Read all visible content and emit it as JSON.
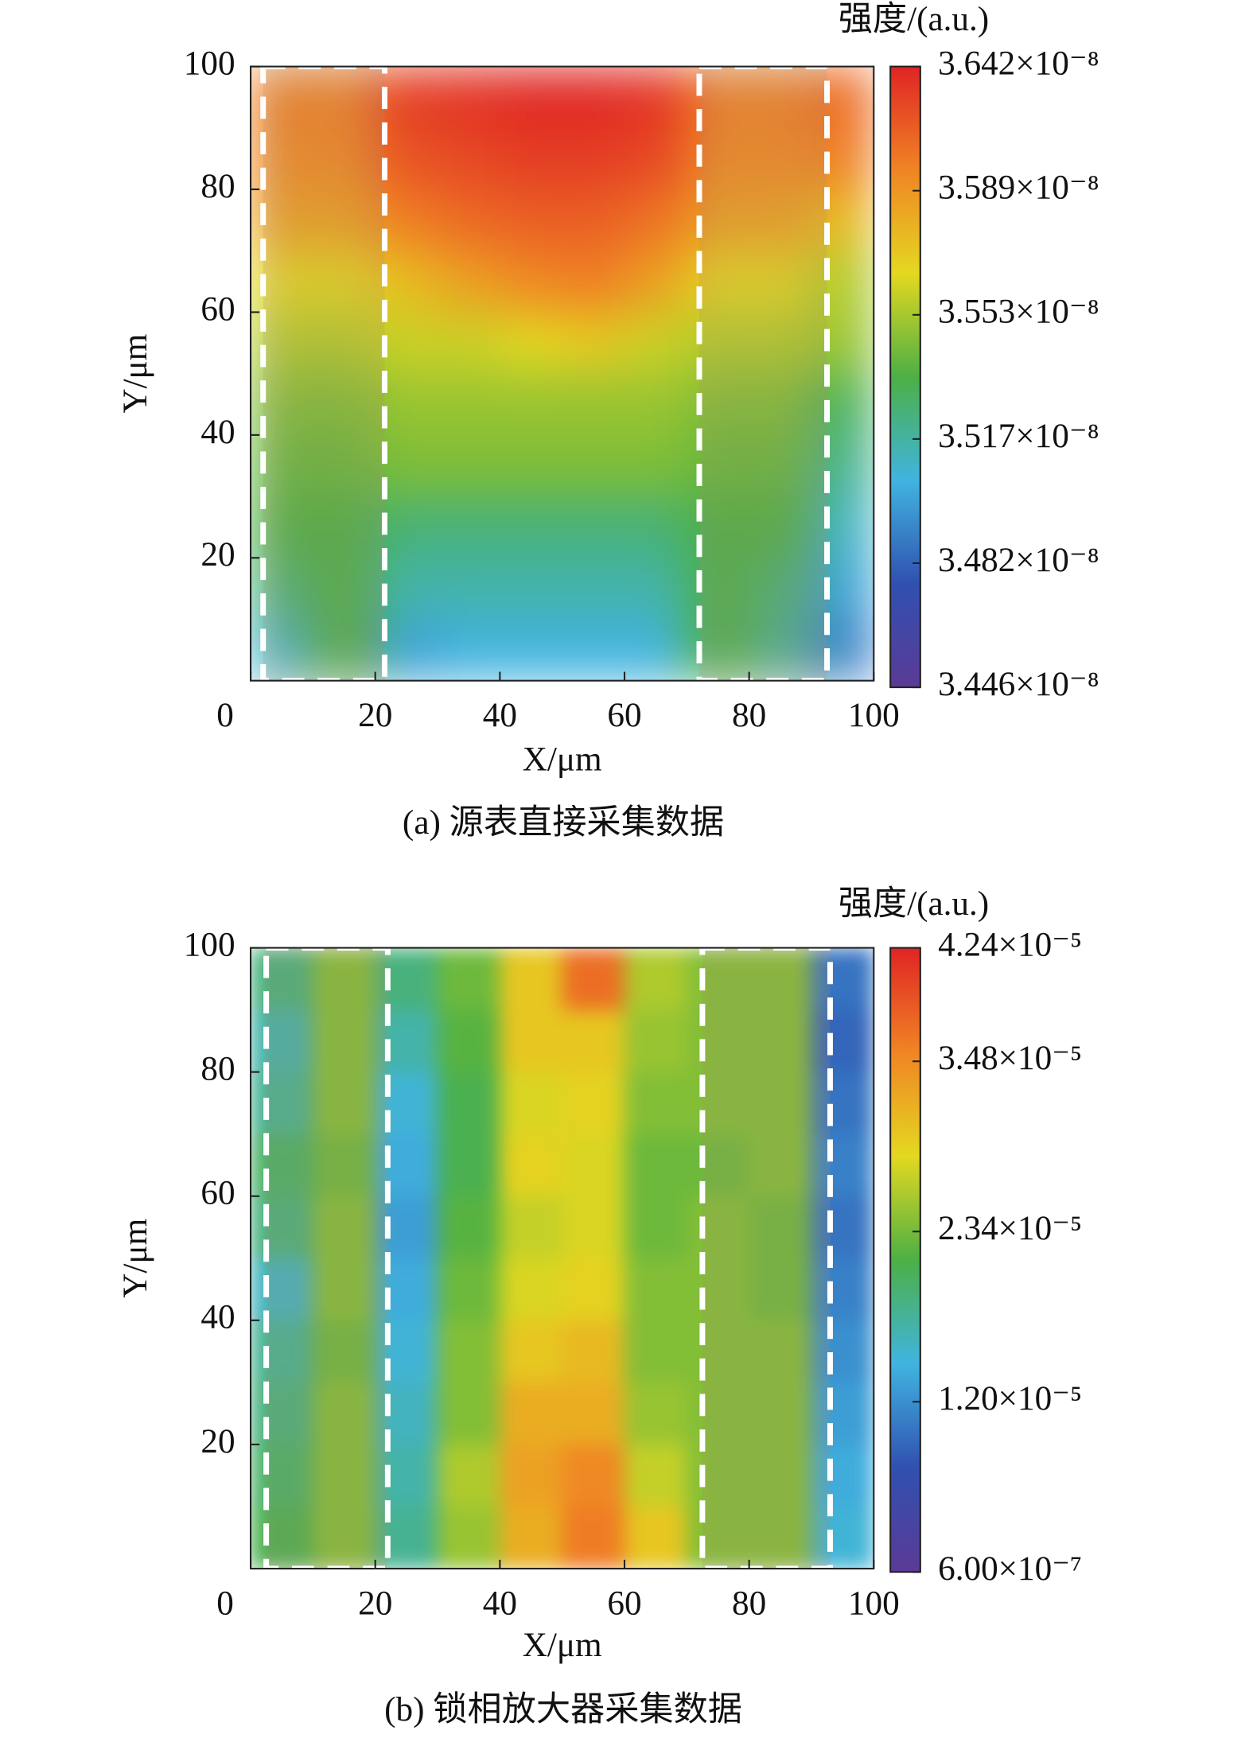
{
  "chart_data": [
    {
      "type": "heatmap",
      "colorbar_label": "强度/(a.u.)",
      "xlabel": "X/μm",
      "ylabel": "Y/μm",
      "caption": "(a) 源表直接采集数据",
      "xlim": [
        0,
        100
      ],
      "ylim": [
        0,
        100
      ],
      "xticks": [
        0,
        20,
        40,
        60,
        80,
        100
      ],
      "yticks": [
        20,
        40,
        60,
        80,
        100
      ],
      "zlim": [
        3.446e-08,
        3.642e-08
      ],
      "colorbar_even_ticks": true,
      "zticks": [
        {
          "value": 3.446e-08,
          "label": "3.446×10⁻⁸"
        },
        {
          "value": 3.482e-08,
          "label": "3.482×10⁻⁸"
        },
        {
          "value": 3.517e-08,
          "label": "3.517×10⁻⁸"
        },
        {
          "value": 3.553e-08,
          "label": "3.553×10⁻⁸"
        },
        {
          "value": 3.589e-08,
          "label": "3.589×10⁻⁸"
        },
        {
          "value": 3.642e-08,
          "label": "3.642×10⁻⁸"
        }
      ],
      "colormap": [
        "#5b3a96",
        "#3050b0",
        "#40b4e0",
        "#4cb044",
        "#e4d820",
        "#f08424",
        "#e02424"
      ],
      "region_edges": [
        2,
        21.5,
        72,
        92.5
      ],
      "x": [
        5,
        15,
        25,
        35,
        45,
        55,
        65,
        75,
        85,
        95
      ],
      "y": [
        95,
        85,
        75,
        65,
        55,
        45,
        35,
        25,
        15,
        5
      ],
      "z": [
        [
          3.6e-08,
          3.6e-08,
          3.63e-08,
          3.635e-08,
          3.64e-08,
          3.64e-08,
          3.635e-08,
          3.6e-08,
          3.6e-08,
          3.61e-08
        ],
        [
          3.595e-08,
          3.595e-08,
          3.62e-08,
          3.625e-08,
          3.63e-08,
          3.63e-08,
          3.625e-08,
          3.595e-08,
          3.595e-08,
          3.6e-08
        ],
        [
          3.585e-08,
          3.585e-08,
          3.6e-08,
          3.61e-08,
          3.615e-08,
          3.615e-08,
          3.605e-08,
          3.585e-08,
          3.585e-08,
          3.575e-08
        ],
        [
          3.565e-08,
          3.565e-08,
          3.575e-08,
          3.585e-08,
          3.595e-08,
          3.6e-08,
          3.585e-08,
          3.565e-08,
          3.565e-08,
          3.555e-08
        ],
        [
          3.555e-08,
          3.555e-08,
          3.56e-08,
          3.56e-08,
          3.565e-08,
          3.57e-08,
          3.56e-08,
          3.555e-08,
          3.555e-08,
          3.55e-08
        ],
        [
          3.545e-08,
          3.545e-08,
          3.55e-08,
          3.55e-08,
          3.55e-08,
          3.55e-08,
          3.55e-08,
          3.545e-08,
          3.545e-08,
          3.53e-08
        ],
        [
          3.54e-08,
          3.54e-08,
          3.545e-08,
          3.545e-08,
          3.545e-08,
          3.545e-08,
          3.545e-08,
          3.54e-08,
          3.54e-08,
          3.52e-08
        ],
        [
          3.535e-08,
          3.535e-08,
          3.525e-08,
          3.525e-08,
          3.525e-08,
          3.525e-08,
          3.525e-08,
          3.535e-08,
          3.535e-08,
          3.51e-08
        ],
        [
          3.525e-08,
          3.535e-08,
          3.515e-08,
          3.515e-08,
          3.515e-08,
          3.515e-08,
          3.515e-08,
          3.535e-08,
          3.525e-08,
          3.5e-08
        ],
        [
          3.51e-08,
          3.535e-08,
          3.5e-08,
          3.505e-08,
          3.505e-08,
          3.505e-08,
          3.505e-08,
          3.535e-08,
          3.52e-08,
          3.49e-08
        ]
      ]
    },
    {
      "type": "heatmap",
      "colorbar_label": "强度/(a.u.)",
      "xlabel": "X/μm",
      "ylabel": "Y/μm",
      "caption": "(b) 锁相放大器采集数据",
      "xlim": [
        0,
        100
      ],
      "ylim": [
        0,
        100
      ],
      "xticks": [
        0,
        20,
        40,
        60,
        80,
        100
      ],
      "yticks": [
        20,
        40,
        60,
        80,
        100
      ],
      "zlim": [
        6e-07,
        4.24e-05
      ],
      "colorbar_even_ticks": false,
      "zticks": [
        {
          "value": 6e-07,
          "label": "6.00×10⁻⁷"
        },
        {
          "value": 1.2e-05,
          "label": "1.20×10⁻⁵"
        },
        {
          "value": 2.34e-05,
          "label": "2.34×10⁻⁵"
        },
        {
          "value": 3.48e-05,
          "label": "3.48×10⁻⁵"
        },
        {
          "value": 4.24e-05,
          "label": "4.24×10⁻⁵"
        }
      ],
      "colormap": [
        "#5b3a96",
        "#3050b0",
        "#40b4e0",
        "#4cb044",
        "#e4d820",
        "#f08424",
        "#e02424"
      ],
      "region_edges": [
        2.5,
        22,
        72.5,
        93
      ],
      "x": [
        5,
        15,
        25,
        35,
        45,
        55,
        65,
        75,
        85,
        95
      ],
      "y": [
        95,
        85,
        75,
        65,
        55,
        45,
        35,
        25,
        15,
        5
      ],
      "z": [
        [
          1.9e-05,
          2.4e-05,
          1.9e-05,
          2.3e-05,
          3e-05,
          3.7e-05,
          2.6e-05,
          2.4e-05,
          2.4e-05,
          1e-05
        ],
        [
          1.7e-05,
          2.4e-05,
          1.7e-05,
          2.2e-05,
          3e-05,
          3e-05,
          2.5e-05,
          2.4e-05,
          2.4e-05,
          9e-06
        ],
        [
          1.8e-05,
          2.4e-05,
          1.5e-05,
          2.1e-05,
          2.8e-05,
          2.9e-05,
          2.4e-05,
          2.4e-05,
          2.4e-05,
          1e-05
        ],
        [
          2e-05,
          2.3e-05,
          1.4e-05,
          2.1e-05,
          2.9e-05,
          2.8e-05,
          2.3e-05,
          2.3e-05,
          2.4e-05,
          1.1e-05
        ],
        [
          1.9e-05,
          2.4e-05,
          1.3e-05,
          2.2e-05,
          2.7e-05,
          2.8e-05,
          2.3e-05,
          2.4e-05,
          2.3e-05,
          1e-05
        ],
        [
          1.6e-05,
          2.4e-05,
          1.4e-05,
          2.3e-05,
          2.8e-05,
          2.9e-05,
          2.4e-05,
          2.4e-05,
          2.3e-05,
          1.1e-05
        ],
        [
          1.8e-05,
          2.3e-05,
          1.5e-05,
          2.4e-05,
          3e-05,
          3.1e-05,
          2.4e-05,
          2.4e-05,
          2.4e-05,
          1.2e-05
        ],
        [
          1.9e-05,
          2.4e-05,
          1.6e-05,
          2.4e-05,
          3.2e-05,
          3.2e-05,
          2.5e-05,
          2.4e-05,
          2.4e-05,
          1.3e-05
        ],
        [
          2e-05,
          2.4e-05,
          1.7e-05,
          2.6e-05,
          3.3e-05,
          3.5e-05,
          2.7e-05,
          2.4e-05,
          2.4e-05,
          1.4e-05
        ],
        [
          2.1e-05,
          2.4e-05,
          1.8e-05,
          2.5e-05,
          3.2e-05,
          3.6e-05,
          3e-05,
          2.4e-05,
          2.4e-05,
          1.5e-05
        ]
      ]
    }
  ]
}
